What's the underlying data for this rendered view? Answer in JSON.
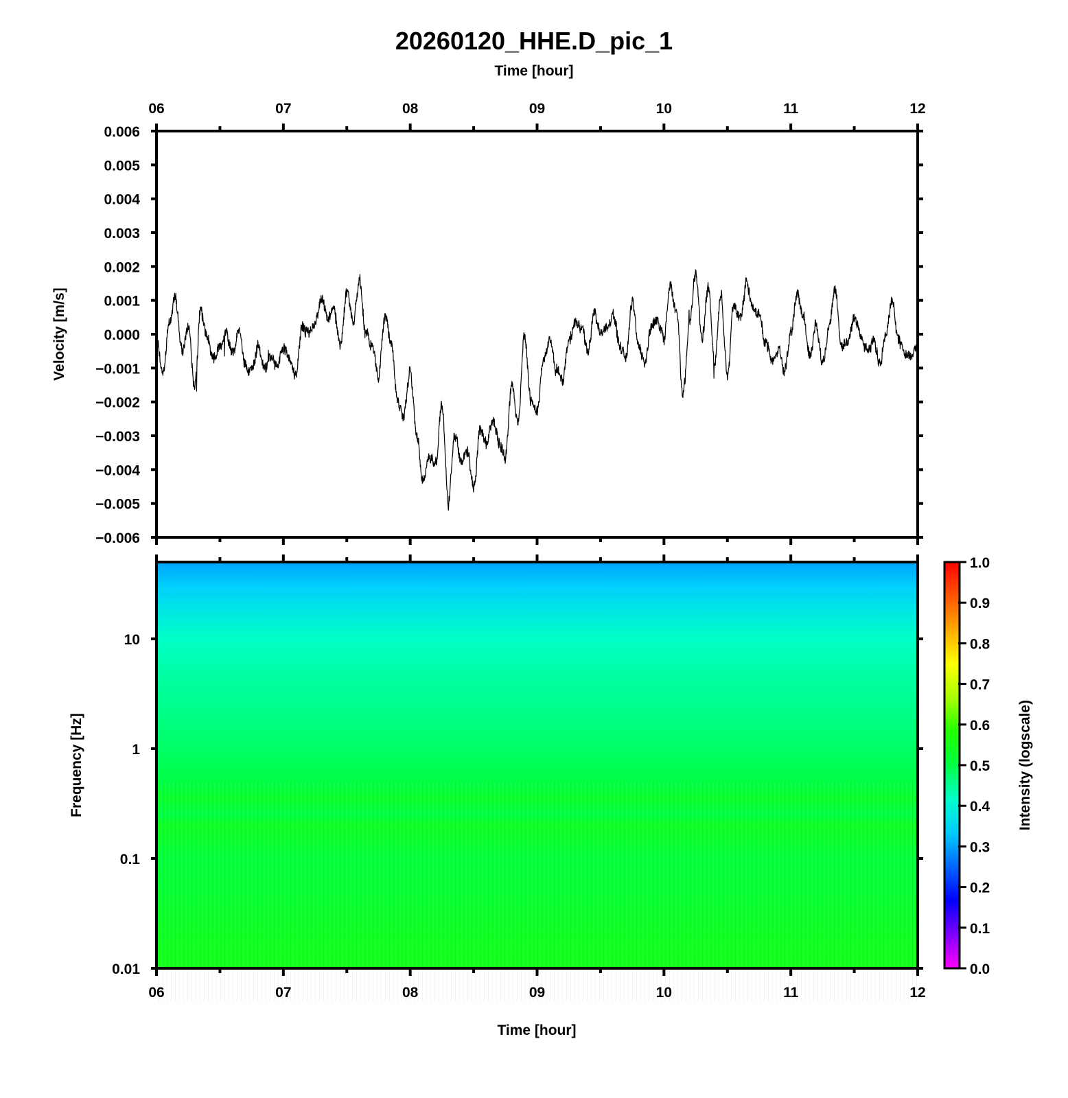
{
  "title": "20260120_HHE.D_pic_1",
  "chart_data": [
    {
      "type": "line",
      "title": "20260120_HHE.D_pic_1",
      "xlabel": "Time [hour]",
      "ylabel": "Velocity [m/s]",
      "xlim": [
        6,
        12
      ],
      "ylim": [
        -0.006,
        0.006
      ],
      "x_tick_labels": [
        "06",
        "07",
        "08",
        "09",
        "10",
        "11",
        "12"
      ],
      "y_tick_labels": [
        "0.006",
        "0.005",
        "0.004",
        "0.003",
        "0.002",
        "0.001",
        "0.000",
        "−0.001",
        "−0.002",
        "−0.003",
        "−0.004",
        "−0.005",
        "−0.006"
      ],
      "grid": false,
      "series": [
        {
          "color": "#000000",
          "x": [
            6.0,
            6.05,
            6.1,
            6.15,
            6.2,
            6.25,
            6.3,
            6.35,
            6.4,
            6.45,
            6.5,
            6.55,
            6.6,
            6.65,
            6.7,
            6.75,
            6.8,
            6.85,
            6.9,
            6.95,
            7.0,
            7.05,
            7.1,
            7.15,
            7.2,
            7.25,
            7.3,
            7.35,
            7.4,
            7.45,
            7.5,
            7.55,
            7.6,
            7.65,
            7.7,
            7.75,
            7.8,
            7.85,
            7.9,
            7.95,
            8.0,
            8.05,
            8.1,
            8.15,
            8.2,
            8.25,
            8.3,
            8.35,
            8.4,
            8.45,
            8.5,
            8.55,
            8.6,
            8.65,
            8.7,
            8.75,
            8.8,
            8.85,
            8.9,
            8.95,
            9.0,
            9.05,
            9.1,
            9.15,
            9.2,
            9.25,
            9.3,
            9.35,
            9.4,
            9.45,
            9.5,
            9.55,
            9.6,
            9.65,
            9.7,
            9.75,
            9.8,
            9.85,
            9.9,
            9.95,
            10.0,
            10.05,
            10.1,
            10.15,
            10.2,
            10.25,
            10.3,
            10.35,
            10.4,
            10.45,
            10.5,
            10.55,
            10.6,
            10.65,
            10.7,
            10.75,
            10.8,
            10.85,
            10.9,
            10.95,
            11.0,
            11.05,
            11.1,
            11.15,
            11.2,
            11.25,
            11.3,
            11.35,
            11.4,
            11.45,
            11.5,
            11.55,
            11.6,
            11.65,
            11.7,
            11.75,
            11.8,
            11.85,
            11.9,
            11.95,
            12.0
          ],
          "y": [
            -0.0002,
            -0.0012,
            0.0003,
            0.0011,
            -0.0005,
            0.0002,
            -0.0015,
            0.0007,
            -0.0001,
            -0.0007,
            -0.0003,
            0.0,
            -0.0006,
            0.0001,
            -0.0009,
            -0.0011,
            -0.0003,
            -0.001,
            -0.0007,
            -0.0009,
            -0.0004,
            -0.0008,
            -0.0012,
            0.0002,
            0.0,
            0.0004,
            0.001,
            0.0005,
            0.0007,
            -0.0003,
            0.0013,
            0.0004,
            0.0016,
            0.0,
            -0.0004,
            -0.0012,
            0.0005,
            -0.0002,
            -0.002,
            -0.0024,
            -0.001,
            -0.003,
            -0.0044,
            -0.0036,
            -0.0038,
            -0.002,
            -0.005,
            -0.003,
            -0.0038,
            -0.0034,
            -0.0045,
            -0.0028,
            -0.0032,
            -0.0025,
            -0.0032,
            -0.0036,
            -0.0015,
            -0.0026,
            0.0,
            -0.002,
            -0.0023,
            -0.0008,
            -0.0001,
            -0.001,
            -0.0014,
            -0.0002,
            0.0003,
            0.0002,
            -0.0005,
            0.0007,
            0.0,
            0.0002,
            0.0006,
            -0.0003,
            -0.0007,
            0.001,
            -0.0003,
            -0.0008,
            0.0002,
            0.0004,
            -0.0001,
            0.0014,
            0.0006,
            -0.0018,
            0.0003,
            0.0018,
            -0.0001,
            0.0014,
            -0.0009,
            0.0012,
            -0.0012,
            0.0009,
            0.0005,
            0.0015,
            0.0008,
            0.0006,
            -0.0002,
            -0.0007,
            -0.0004,
            -0.0011,
            0.0,
            0.0012,
            0.0005,
            -0.0006,
            0.0003,
            -0.0008,
            0.0002,
            0.0012,
            -0.0004,
            -0.0002,
            0.0005,
            0.0,
            -0.0005,
            -0.0002,
            -0.0008,
            0.0,
            0.001,
            -0.0002,
            -0.0005,
            -0.0006,
            -0.0004
          ]
        }
      ]
    },
    {
      "type": "heatmap",
      "xlabel": "Time [hour]",
      "ylabel": "Frequency [Hz]",
      "xlim": [
        6,
        12
      ],
      "ylim": [
        0.01,
        50
      ],
      "y_scale": "log",
      "x_tick_labels": [
        "06",
        "07",
        "08",
        "09",
        "10",
        "11",
        "12"
      ],
      "y_tick_labels": [
        "10",
        "1",
        "0.1",
        "0.01"
      ],
      "colorbar": {
        "label": "Intensity (logscale)",
        "range": [
          0.0,
          1.0
        ],
        "tick_labels": [
          "1.0",
          "0.9",
          "0.8",
          "0.7",
          "0.6",
          "0.5",
          "0.4",
          "0.3",
          "0.2",
          "0.1",
          "0.0"
        ],
        "colors": [
          "#ff00ff",
          "#7f00ff",
          "#0000ff",
          "#0066ff",
          "#00ccff",
          "#00ffcc",
          "#00ff44",
          "#22ff00",
          "#aaff00",
          "#ffff00",
          "#ffaa00",
          "#ff5500",
          "#ff0000"
        ]
      },
      "frequency_profile": {
        "frequency_hz": [
          50,
          30,
          20,
          15,
          10,
          5,
          2,
          1,
          0.5,
          0.35,
          0.25,
          0.2,
          0.1,
          0.05,
          0.02,
          0.01
        ],
        "intensity": [
          0.3,
          0.34,
          0.37,
          0.39,
          0.42,
          0.44,
          0.46,
          0.48,
          0.5,
          0.53,
          0.5,
          0.54,
          0.51,
          0.52,
          0.54,
          0.55
        ]
      }
    }
  ]
}
